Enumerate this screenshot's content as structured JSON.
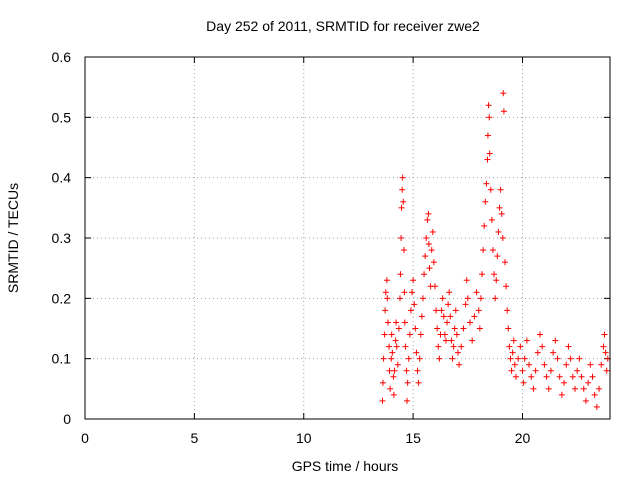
{
  "chart_data": {
    "type": "scatter",
    "title": "Day 252 of 2011, SRMTID for receiver zwe2",
    "xlabel": "GPS time / hours",
    "ylabel": "SRMTID / TECUs",
    "xlim": [
      0,
      24
    ],
    "ylim": [
      0,
      0.6
    ],
    "x_ticks": [
      "0",
      "5",
      "10",
      "15",
      "20"
    ],
    "y_ticks": [
      "0",
      "0.1",
      "0.2",
      "0.3",
      "0.4",
      "0.5",
      "0.6"
    ],
    "grid": true,
    "marker": "+",
    "color": "#ff0000",
    "points": [
      [
        13.6,
        0.03
      ],
      [
        13.62,
        0.06
      ],
      [
        13.65,
        0.1
      ],
      [
        13.7,
        0.14
      ],
      [
        13.72,
        0.18
      ],
      [
        13.75,
        0.21
      ],
      [
        13.8,
        0.23
      ],
      [
        13.82,
        0.2
      ],
      [
        13.85,
        0.16
      ],
      [
        13.9,
        0.12
      ],
      [
        13.92,
        0.08
      ],
      [
        13.95,
        0.05
      ],
      [
        14.0,
        0.1
      ],
      [
        14.02,
        0.14
      ],
      [
        14.05,
        0.11
      ],
      [
        14.1,
        0.07
      ],
      [
        14.12,
        0.04
      ],
      [
        14.15,
        0.08
      ],
      [
        14.2,
        0.13
      ],
      [
        14.22,
        0.16
      ],
      [
        14.25,
        0.12
      ],
      [
        14.3,
        0.09
      ],
      [
        14.35,
        0.15
      ],
      [
        14.4,
        0.2
      ],
      [
        14.42,
        0.24
      ],
      [
        14.45,
        0.3
      ],
      [
        14.47,
        0.35
      ],
      [
        14.5,
        0.38
      ],
      [
        14.52,
        0.4
      ],
      [
        14.55,
        0.36
      ],
      [
        14.58,
        0.28
      ],
      [
        14.6,
        0.21
      ],
      [
        14.62,
        0.16
      ],
      [
        14.65,
        0.12
      ],
      [
        14.7,
        0.08
      ],
      [
        14.72,
        0.03
      ],
      [
        14.75,
        0.06
      ],
      [
        14.8,
        0.1
      ],
      [
        14.85,
        0.14
      ],
      [
        14.9,
        0.18
      ],
      [
        14.95,
        0.21
      ],
      [
        15.0,
        0.23
      ],
      [
        15.05,
        0.19
      ],
      [
        15.1,
        0.15
      ],
      [
        15.15,
        0.11
      ],
      [
        15.2,
        0.08
      ],
      [
        15.25,
        0.06
      ],
      [
        15.3,
        0.1
      ],
      [
        15.35,
        0.14
      ],
      [
        15.4,
        0.17
      ],
      [
        15.45,
        0.2
      ],
      [
        15.5,
        0.24
      ],
      [
        15.55,
        0.27
      ],
      [
        15.6,
        0.3
      ],
      [
        15.65,
        0.33
      ],
      [
        15.7,
        0.34
      ],
      [
        15.72,
        0.29
      ],
      [
        15.75,
        0.25
      ],
      [
        15.8,
        0.22
      ],
      [
        15.85,
        0.28
      ],
      [
        15.9,
        0.31
      ],
      [
        15.95,
        0.26
      ],
      [
        16.0,
        0.22
      ],
      [
        16.05,
        0.18
      ],
      [
        16.1,
        0.15
      ],
      [
        16.15,
        0.12
      ],
      [
        16.2,
        0.1
      ],
      [
        16.25,
        0.14
      ],
      [
        16.3,
        0.18
      ],
      [
        16.35,
        0.2
      ],
      [
        16.4,
        0.17
      ],
      [
        16.45,
        0.14
      ],
      [
        16.5,
        0.13
      ],
      [
        16.55,
        0.16
      ],
      [
        16.6,
        0.19
      ],
      [
        16.65,
        0.21
      ],
      [
        16.7,
        0.17
      ],
      [
        16.75,
        0.13
      ],
      [
        16.8,
        0.1
      ],
      [
        16.85,
        0.12
      ],
      [
        16.9,
        0.15
      ],
      [
        16.95,
        0.18
      ],
      [
        17.0,
        0.14
      ],
      [
        17.05,
        0.11
      ],
      [
        17.1,
        0.09
      ],
      [
        17.2,
        0.12
      ],
      [
        17.3,
        0.15
      ],
      [
        17.4,
        0.19
      ],
      [
        17.45,
        0.23
      ],
      [
        17.5,
        0.2
      ],
      [
        17.6,
        0.16
      ],
      [
        17.7,
        0.13
      ],
      [
        17.8,
        0.17
      ],
      [
        17.9,
        0.21
      ],
      [
        18.0,
        0.18
      ],
      [
        18.05,
        0.15
      ],
      [
        18.1,
        0.2
      ],
      [
        18.15,
        0.24
      ],
      [
        18.2,
        0.28
      ],
      [
        18.25,
        0.32
      ],
      [
        18.3,
        0.36
      ],
      [
        18.35,
        0.39
      ],
      [
        18.4,
        0.43
      ],
      [
        18.42,
        0.47
      ],
      [
        18.45,
        0.52
      ],
      [
        18.48,
        0.5
      ],
      [
        18.5,
        0.44
      ],
      [
        18.55,
        0.38
      ],
      [
        18.6,
        0.33
      ],
      [
        18.65,
        0.28
      ],
      [
        18.7,
        0.24
      ],
      [
        18.75,
        0.2
      ],
      [
        18.8,
        0.23
      ],
      [
        18.85,
        0.27
      ],
      [
        18.9,
        0.31
      ],
      [
        18.95,
        0.35
      ],
      [
        19.0,
        0.38
      ],
      [
        19.05,
        0.34
      ],
      [
        19.1,
        0.3
      ],
      [
        19.12,
        0.54
      ],
      [
        19.15,
        0.51
      ],
      [
        19.2,
        0.26
      ],
      [
        19.25,
        0.22
      ],
      [
        19.3,
        0.18
      ],
      [
        19.35,
        0.15
      ],
      [
        19.4,
        0.12
      ],
      [
        19.45,
        0.1
      ],
      [
        19.5,
        0.08
      ],
      [
        19.55,
        0.11
      ],
      [
        19.6,
        0.13
      ],
      [
        19.65,
        0.09
      ],
      [
        19.7,
        0.07
      ],
      [
        19.8,
        0.1
      ],
      [
        19.9,
        0.12
      ],
      [
        20.0,
        0.08
      ],
      [
        20.05,
        0.06
      ],
      [
        20.1,
        0.1
      ],
      [
        20.2,
        0.13
      ],
      [
        20.3,
        0.09
      ],
      [
        20.4,
        0.07
      ],
      [
        20.5,
        0.05
      ],
      [
        20.6,
        0.08
      ],
      [
        20.7,
        0.11
      ],
      [
        20.8,
        0.14
      ],
      [
        20.9,
        0.12
      ],
      [
        21.0,
        0.09
      ],
      [
        21.1,
        0.07
      ],
      [
        21.2,
        0.05
      ],
      [
        21.3,
        0.08
      ],
      [
        21.4,
        0.11
      ],
      [
        21.5,
        0.13
      ],
      [
        21.6,
        0.1
      ],
      [
        21.7,
        0.07
      ],
      [
        21.8,
        0.04
      ],
      [
        21.9,
        0.06
      ],
      [
        22.0,
        0.09
      ],
      [
        22.1,
        0.12
      ],
      [
        22.2,
        0.1
      ],
      [
        22.3,
        0.07
      ],
      [
        22.4,
        0.05
      ],
      [
        22.5,
        0.08
      ],
      [
        22.6,
        0.1
      ],
      [
        22.7,
        0.07
      ],
      [
        22.8,
        0.05
      ],
      [
        22.9,
        0.03
      ],
      [
        23.0,
        0.06
      ],
      [
        23.1,
        0.09
      ],
      [
        23.2,
        0.07
      ],
      [
        23.3,
        0.04
      ],
      [
        23.4,
        0.02
      ],
      [
        23.5,
        0.05
      ],
      [
        23.6,
        0.09
      ],
      [
        23.7,
        0.12
      ],
      [
        23.75,
        0.14
      ],
      [
        23.8,
        0.11
      ],
      [
        23.85,
        0.08
      ],
      [
        23.9,
        0.1
      ]
    ]
  }
}
